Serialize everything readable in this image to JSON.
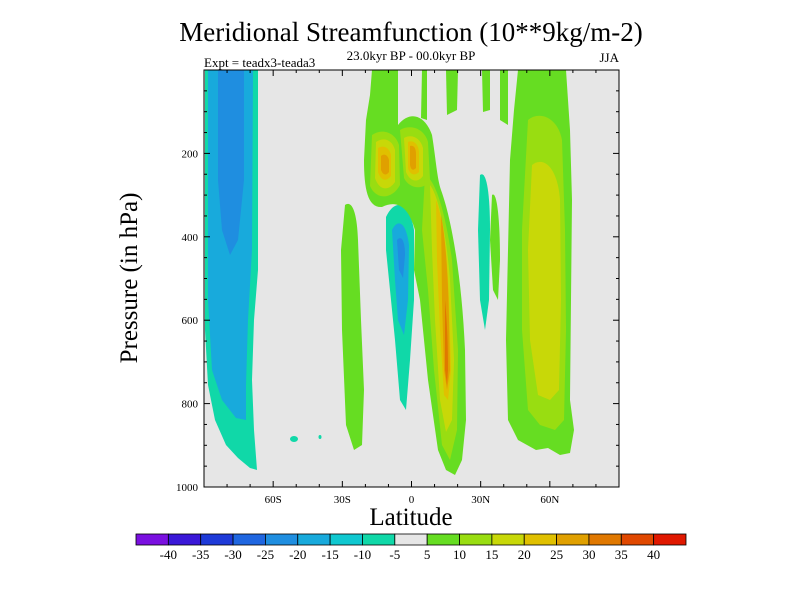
{
  "chart_data": {
    "type": "filled-contour",
    "title": "Meridional Streamfunction (10**9kg/m-2)",
    "subtitle": "23.0kyr BP - 00.0kyr BP",
    "left_label": "Expt = teadx3-teada3",
    "right_label": "JJA",
    "xlabel": "Latitude",
    "ylabel": "Pressure (in hPa)",
    "xlim": [
      -90,
      90
    ],
    "ylim": [
      1000,
      0
    ],
    "x_ticks": [
      {
        "value": -60,
        "label": "60S"
      },
      {
        "value": -30,
        "label": "30S"
      },
      {
        "value": 0,
        "label": "0"
      },
      {
        "value": 30,
        "label": "30N"
      },
      {
        "value": 60,
        "label": "60N"
      }
    ],
    "y_ticks": [
      {
        "value": 200,
        "label": "200"
      },
      {
        "value": 400,
        "label": "400"
      },
      {
        "value": 600,
        "label": "600"
      },
      {
        "value": 800,
        "label": "800"
      },
      {
        "value": 1000,
        "label": "1000"
      }
    ],
    "background_color": "#e6e6e6",
    "colorbar": {
      "levels": [
        "-40",
        "-35",
        "-30",
        "-25",
        "-20",
        "-15",
        "-10",
        "-5",
        "5",
        "10",
        "15",
        "20",
        "25",
        "30",
        "35",
        "40"
      ],
      "colors": [
        "#7a10e0",
        "#3a18d8",
        "#1e3ad8",
        "#1f66e0",
        "#1f8ee0",
        "#18aadc",
        "#10c8d0",
        "#10d8a8",
        "#e6e6e6",
        "#66dd22",
        "#99dd11",
        "#c8d808",
        "#e0c000",
        "#e0a000",
        "#e07800",
        "#e04800",
        "#e01800"
      ]
    },
    "features": [
      {
        "type": "cell",
        "name": "southern-polar-cell",
        "sign": "negative",
        "lat": [
          -85,
          -63
        ],
        "lev": [
          0,
          960
        ],
        "peak": -17
      },
      {
        "type": "cell",
        "name": "equatorial-negative-cell",
        "sign": "negative",
        "lat": [
          -8,
          -2
        ],
        "lev": [
          300,
          850
        ],
        "peak": -17
      },
      {
        "type": "cell",
        "name": "tropical-positive-cell",
        "sign": "positive",
        "lat": [
          5,
          23
        ],
        "lev": [
          170,
          960
        ],
        "peak": 28
      },
      {
        "type": "cell",
        "name": "upper-tropical-cells",
        "sign": "positive",
        "lat": [
          -15,
          5
        ],
        "lev": [
          130,
          260
        ],
        "peak": 24
      },
      {
        "type": "cell",
        "name": "northern-midlatitude-cell",
        "sign": "positive",
        "lat": [
          40,
          65
        ],
        "lev": [
          0,
          950
        ],
        "peak": 18
      }
    ]
  }
}
